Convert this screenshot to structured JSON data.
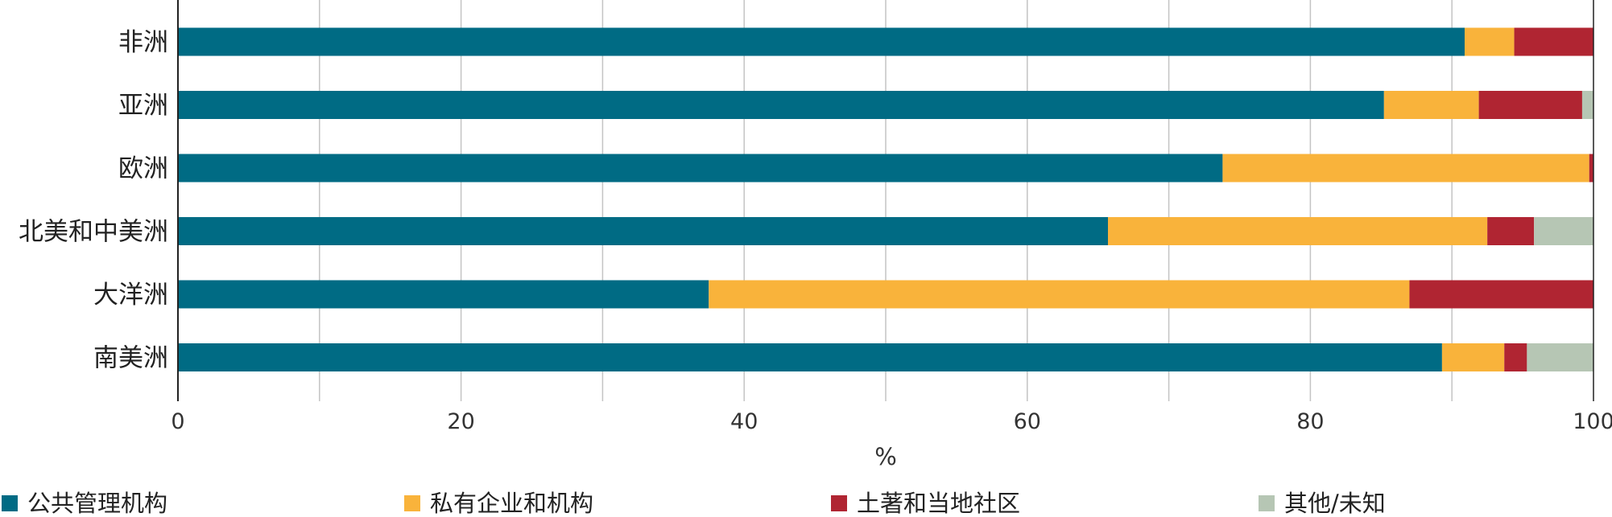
{
  "chart_data": {
    "type": "bar",
    "orientation": "horizontal",
    "stacked": true,
    "categories": [
      "非洲",
      "亚洲",
      "欧洲",
      "北美和中美洲",
      "大洋洲",
      "南美洲"
    ],
    "series": [
      {
        "name": "公共管理机构",
        "color": "#006B84",
        "values": [
          90.9,
          85.2,
          73.8,
          65.7,
          37.5,
          89.3
        ]
      },
      {
        "name": "私有企业和机构",
        "color": "#F9B33B",
        "values": [
          3.5,
          6.7,
          25.9,
          26.8,
          49.5,
          4.4
        ]
      },
      {
        "name": "土著和当地社区",
        "color": "#B02532",
        "values": [
          5.6,
          7.3,
          0.3,
          3.3,
          13.0,
          1.6
        ]
      },
      {
        "name": "其他/未知",
        "color": "#B6C6B4",
        "values": [
          0.0,
          0.8,
          0.0,
          4.2,
          0.0,
          4.7
        ]
      }
    ],
    "xlabel": "%",
    "xlim": [
      0,
      100
    ],
    "xticks": [
      0,
      20,
      40,
      60,
      80,
      100
    ],
    "grid": true,
    "legend_position": "bottom"
  }
}
